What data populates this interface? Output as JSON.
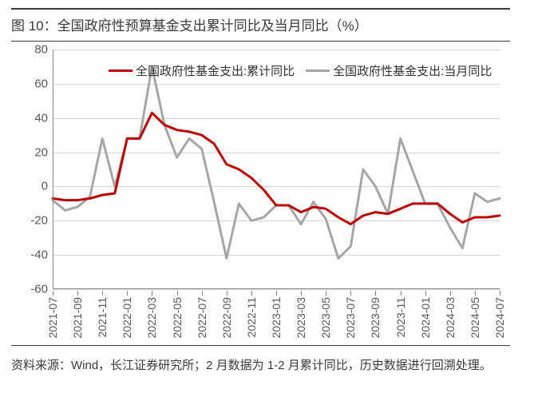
{
  "title": "图 10：全国政府性预算基金支出累计同比及当月同比（%）",
  "source": "资料来源：Wind，长江证券研究所；2 月数据为 1-2 月累计同比，历史数据进行回溯处理。",
  "chart": {
    "type": "line",
    "background_color": "#ffffff",
    "grid_color": "#d9d9d9",
    "axis_color": "#8a8a8a",
    "tick_font_size": 15,
    "tick_color": "#595959",
    "ylim": [
      -60,
      80
    ],
    "ytick_step": 20,
    "yticks": [
      -60,
      -40,
      -20,
      0,
      20,
      40,
      60,
      80
    ],
    "x_labels": [
      "2021-07",
      "2021-09",
      "2021-11",
      "2022-01",
      "2022-03",
      "2022-05",
      "2022-07",
      "2022-09",
      "2022-11",
      "2023-01",
      "2023-03",
      "2023-05",
      "2023-07",
      "2023-09",
      "2023-11",
      "2024-01",
      "2024-03",
      "2024-05",
      "2024-07"
    ],
    "x_label_rotation": -90,
    "x_categories": [
      "2021-07",
      "2021-08",
      "2021-09",
      "2021-10",
      "2021-11",
      "2021-12",
      "2022-01",
      "2022-02",
      "2022-03",
      "2022-04",
      "2022-05",
      "2022-06",
      "2022-07",
      "2022-08",
      "2022-09",
      "2022-10",
      "2022-11",
      "2022-12",
      "2023-01",
      "2023-02",
      "2023-03",
      "2023-04",
      "2023-05",
      "2023-06",
      "2023-07",
      "2023-08",
      "2023-09",
      "2023-10",
      "2023-11",
      "2023-12",
      "2024-01",
      "2024-02",
      "2024-03",
      "2024-04",
      "2024-05",
      "2024-06",
      "2024-07"
    ],
    "series": [
      {
        "name": "全国政府性基金支出:累计同比",
        "color": "#c00000",
        "line_width": 3,
        "values": [
          -7,
          -8,
          -8,
          -7,
          -5,
          -4,
          28,
          28,
          43,
          36,
          33,
          32,
          30,
          25,
          13,
          10,
          5,
          -2,
          -11,
          -11,
          -15,
          -12,
          -13,
          -18,
          -22,
          -17,
          -15,
          -16,
          -13,
          -10,
          -10,
          -10,
          -16,
          -21,
          -18,
          -18,
          -17
        ]
      },
      {
        "name": "全国政府性基金支出:当月同比",
        "color": "#a6a6a6",
        "line_width": 3,
        "values": [
          -8,
          -14,
          -12,
          -6,
          28,
          0,
          28,
          28,
          70,
          36,
          17,
          28,
          22,
          -9,
          -42,
          -10,
          -20,
          -18,
          -11,
          -11,
          -22,
          -9,
          -19,
          -42,
          -35,
          10,
          0,
          -16,
          28,
          9,
          -10,
          -10,
          -24,
          -36,
          -4,
          -9,
          -7
        ]
      }
    ],
    "legend": {
      "position": "top-left",
      "font_size": 15,
      "text_color": "#333333"
    }
  }
}
